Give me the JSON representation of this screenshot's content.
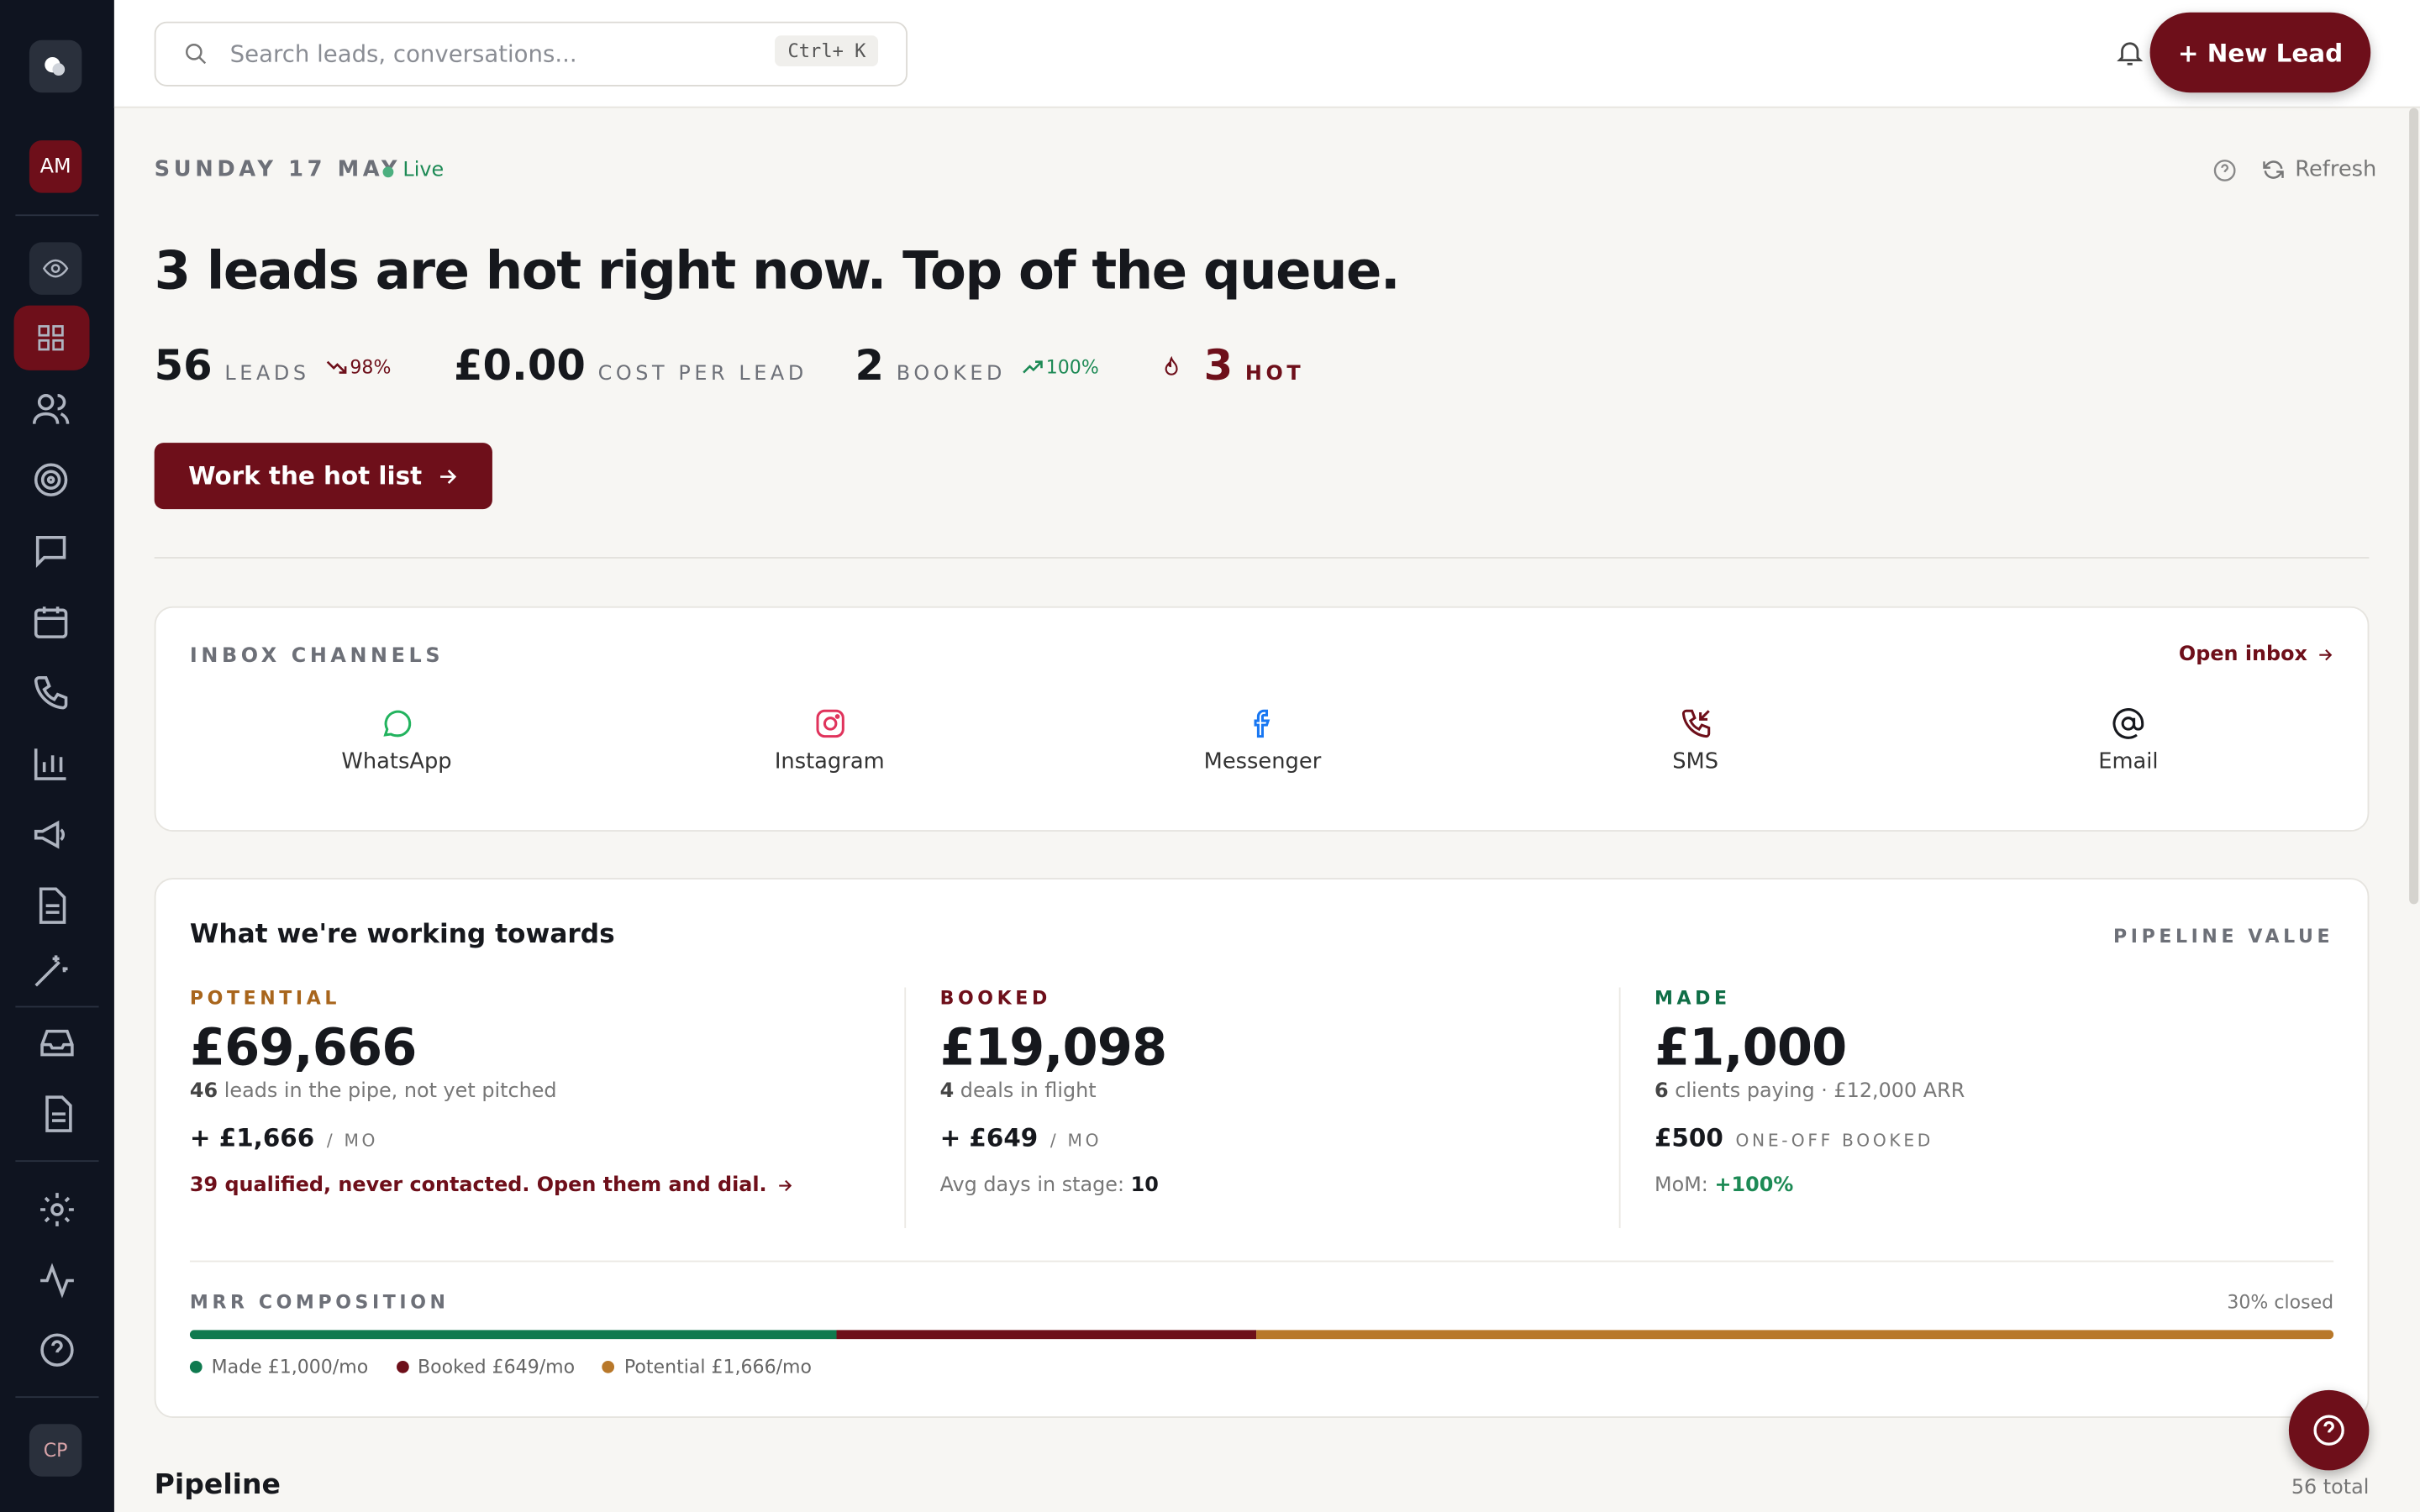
{
  "search": {
    "placeholder": "Search leads, conversations...",
    "shortcut": "Ctrl+ K"
  },
  "new_lead": "+ New Lead",
  "sidebar": {
    "user": "AM",
    "footer_user": "CP"
  },
  "header": {
    "date": "SUNDAY 17 MAY",
    "status": "Live",
    "refresh": "Refresh",
    "headline": "3 leads are hot right now. Top of the queue."
  },
  "stats": [
    {
      "value": "56",
      "label": "LEADS",
      "change": "98%"
    },
    {
      "value": "£0.00",
      "label": "COST PER LEAD"
    },
    {
      "value": "2",
      "label": "BOOKED",
      "change": "100%"
    },
    {
      "value": "3",
      "label": "HOT"
    }
  ],
  "cta": "Work the hot list",
  "inbox": {
    "title": "INBOX CHANNELS",
    "link": "Open inbox",
    "channels": [
      "WhatsApp",
      "Instagram",
      "Messenger",
      "SMS",
      "Email"
    ]
  },
  "goals": {
    "title": "What we're working towards",
    "aside": "PIPELINE VALUE",
    "columns": [
      {
        "label": "POTENTIAL",
        "amount": "£69,666",
        "count": "46",
        "detail": "leads in the pipe, not yet pitched",
        "monthly": "+ £1,666",
        "unit": "/ MO",
        "note": "39 qualified, never contacted. Open them and dial."
      },
      {
        "label": "BOOKED",
        "amount": "£19,098",
        "count": "4",
        "detail": "deals in flight",
        "monthly": "+ £649",
        "unit": "/ MO",
        "note_label": "Avg days in stage:",
        "note_value": "10"
      },
      {
        "label": "MADE",
        "amount": "£1,000",
        "count": "6",
        "detail": "clients paying · £12,000 ARR",
        "monthly": "£500",
        "unit": "ONE-OFF BOOKED",
        "note_label": "MoM:",
        "note_value": "+100%"
      }
    ]
  },
  "mrr": {
    "title": "MRR COMPOSITION",
    "closed": "30% closed",
    "segments": [
      {
        "label": "Made £1,000/mo",
        "value": 1000,
        "color": "#0f7a4f"
      },
      {
        "label": "Booked £649/mo",
        "value": 649,
        "color": "#6e0f1a"
      },
      {
        "label": "Potential £1,666/mo",
        "value": 1666,
        "color": "#b8782a"
      }
    ]
  },
  "pipeline": {
    "title": "Pipeline",
    "total": "56 total"
  }
}
